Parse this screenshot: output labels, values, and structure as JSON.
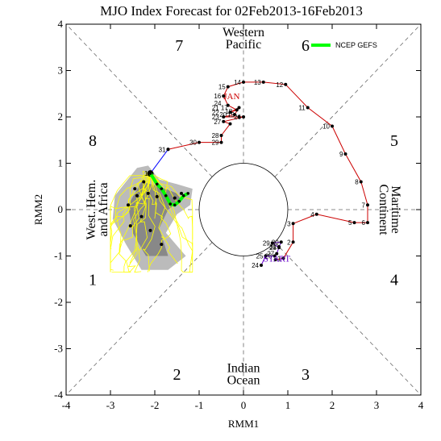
{
  "chart_data": {
    "type": "scatter",
    "title": "MJO Index Forecast for 02Feb2013-16Feb2013",
    "xlabel": "RMM1",
    "ylabel": "RMM2",
    "xlim": [
      -4,
      4
    ],
    "ylim": [
      -4,
      4
    ],
    "xticks": [
      "-4",
      "-3",
      "-2",
      "-1",
      "0",
      "1",
      "2",
      "3",
      "4"
    ],
    "yticks": [
      "-4",
      "-3",
      "-2",
      "-1",
      "0",
      "1",
      "2",
      "3",
      "4"
    ],
    "unit_circle_radius": 1,
    "phases": [
      {
        "label": "1",
        "x": -3.4,
        "y": -1.5
      },
      {
        "label": "2",
        "x": -1.5,
        "y": -3.55
      },
      {
        "label": "3",
        "x": 1.4,
        "y": -3.55
      },
      {
        "label": "4",
        "x": 3.4,
        "y": -1.5
      },
      {
        "label": "5",
        "x": 3.4,
        "y": 1.5
      },
      {
        "label": "6",
        "x": 1.4,
        "y": 3.55
      },
      {
        "label": "7",
        "x": -1.45,
        "y": 3.55
      },
      {
        "label": "8",
        "x": -3.4,
        "y": 1.5
      }
    ],
    "regions": [
      {
        "lines": [
          "Western",
          "Pacific"
        ],
        "x": 0,
        "y": 3.7,
        "rotate": 0
      },
      {
        "lines": [
          "Indian",
          "Ocean"
        ],
        "x": 0,
        "y": -3.55,
        "rotate": 0
      },
      {
        "lines": [
          "West. Hem.",
          "and Africa"
        ],
        "x": -3.3,
        "y": 0,
        "rotate": -90
      },
      {
        "lines": [
          "Maritime",
          "Continent"
        ],
        "x": 3.3,
        "y": 0,
        "rotate": 90
      }
    ],
    "legend": {
      "label": "NCEP GEFS",
      "color": "#00ff00",
      "position": "top-right"
    },
    "series": [
      {
        "kind": "observed-jan",
        "color": "#cc0000",
        "month_label": "JAN",
        "month_label_at": [
          -0.45,
          2.45
        ],
        "points": [
          {
            "label": "",
            "x": 0.72,
            "y": -1.08
          },
          {
            "label": "1",
            "x": 0.9,
            "y": -1.05
          },
          {
            "label": "2",
            "x": 1.12,
            "y": -0.7
          },
          {
            "label": "3",
            "x": 1.12,
            "y": -0.3
          },
          {
            "label": "4",
            "x": 1.65,
            "y": -0.1
          },
          {
            "label": "5",
            "x": 2.5,
            "y": -0.28
          },
          {
            "label": "6",
            "x": 2.8,
            "y": -0.28
          },
          {
            "label": "7",
            "x": 2.8,
            "y": 0.1
          },
          {
            "label": "8",
            "x": 2.65,
            "y": 0.6
          },
          {
            "label": "9",
            "x": 2.3,
            "y": 1.2
          },
          {
            "label": "10",
            "x": 2.0,
            "y": 1.8
          },
          {
            "label": "11",
            "x": 1.45,
            "y": 2.2
          },
          {
            "label": "12",
            "x": 0.95,
            "y": 2.7
          },
          {
            "label": "13",
            "x": 0.45,
            "y": 2.75
          },
          {
            "label": "14",
            "x": 0.0,
            "y": 2.75
          },
          {
            "label": "15",
            "x": -0.35,
            "y": 2.65
          },
          {
            "label": "16",
            "x": -0.45,
            "y": 2.45
          },
          {
            "label": "",
            "x": -0.35,
            "y": 2.25
          },
          {
            "label": "",
            "x": -0.15,
            "y": 2.15
          },
          {
            "label": "",
            "x": -0.3,
            "y": 2.1
          },
          {
            "label": "",
            "x": -0.1,
            "y": 2.2
          },
          {
            "label": "",
            "x": -0.2,
            "y": 2.05
          },
          {
            "label": "",
            "x": -0.45,
            "y": 2.0
          },
          {
            "label": "",
            "x": -0.1,
            "y": 2.0
          },
          {
            "label": "26",
            "x": 0.0,
            "y": 2.0
          },
          {
            "label": "27",
            "x": -0.45,
            "y": 1.9
          },
          {
            "label": "",
            "x": -0.3,
            "y": 1.85
          },
          {
            "label": "28",
            "x": -0.5,
            "y": 1.6
          },
          {
            "label": "29",
            "x": -0.5,
            "y": 1.45
          },
          {
            "label": "30",
            "x": -1.0,
            "y": 1.45
          },
          {
            "label": "31",
            "x": -1.7,
            "y": 1.3
          }
        ],
        "cluster_labels": [
          {
            "text": "24",
            "x": -0.5,
            "y": 2.3
          },
          {
            "text": "21",
            "x": -0.55,
            "y": 2.2
          },
          {
            "text": "22",
            "x": -0.55,
            "y": 2.1
          },
          {
            "text": "23",
            "x": -0.55,
            "y": 2.0
          },
          {
            "text": "17",
            "x": -0.35,
            "y": 2.2
          },
          {
            "text": "18",
            "x": -0.25,
            "y": 2.12
          },
          {
            "text": "19",
            "x": -0.2,
            "y": 2.05
          },
          {
            "text": "20",
            "x": -0.38,
            "y": 2.05
          }
        ]
      },
      {
        "kind": "observed-dec",
        "color": "#6600cc",
        "month_label": "START",
        "month_label_at": [
          0.45,
          -1.05
        ],
        "points": [
          {
            "label": "24",
            "x": 0.4,
            "y": -1.2
          },
          {
            "label": "25",
            "x": 0.5,
            "y": -1.0
          },
          {
            "label": "26",
            "x": 0.7,
            "y": -1.0
          },
          {
            "label": "27",
            "x": 0.75,
            "y": -0.95
          },
          {
            "label": "28",
            "x": 0.8,
            "y": -0.82
          },
          {
            "label": "29",
            "x": 0.65,
            "y": -0.72
          },
          {
            "label": "30",
            "x": 0.85,
            "y": -0.7
          },
          {
            "label": "31",
            "x": 0.8,
            "y": -0.8
          }
        ]
      },
      {
        "kind": "feb-connector",
        "color": "#0000ff",
        "points": [
          {
            "label": "",
            "x": -1.7,
            "y": 1.3
          },
          {
            "label": "1",
            "x": -2.1,
            "y": 0.78
          }
        ]
      },
      {
        "kind": "ensemble-mean",
        "color": "#00ff00",
        "points": [
          {
            "x": -2.1,
            "y": 0.78
          },
          {
            "x": -1.95,
            "y": 0.55
          },
          {
            "x": -1.85,
            "y": 0.45
          },
          {
            "x": -1.75,
            "y": 0.3
          },
          {
            "x": -1.65,
            "y": 0.12
          },
          {
            "x": -1.55,
            "y": 0.1
          },
          {
            "x": -1.45,
            "y": 0.18
          },
          {
            "x": -1.35,
            "y": 0.3
          },
          {
            "x": -1.25,
            "y": 0.35
          }
        ]
      },
      {
        "kind": "ensemble-track-dots",
        "color": "#000000",
        "points": [
          {
            "x": -2.25,
            "y": 0.6
          },
          {
            "x": -2.45,
            "y": 0.45
          },
          {
            "x": -2.15,
            "y": 0.35
          },
          {
            "x": -2.4,
            "y": 0.3
          },
          {
            "x": -1.95,
            "y": 0.28
          },
          {
            "x": -1.55,
            "y": 0.25
          },
          {
            "x": -1.4,
            "y": 0.35
          },
          {
            "x": -2.6,
            "y": 0.1
          },
          {
            "x": -2.3,
            "y": -0.15
          },
          {
            "x": -2.1,
            "y": -0.45
          },
          {
            "x": -1.85,
            "y": -0.75
          },
          {
            "x": -2.55,
            "y": -0.35
          }
        ]
      }
    ],
    "ensemble_spread": {
      "outer_color": "#bbbbbb",
      "inner_color": "#888888",
      "outer": [
        [
          -2.4,
          0.9
        ],
        [
          -2.15,
          0.95
        ],
        [
          -1.9,
          0.65
        ],
        [
          -1.5,
          0.55
        ],
        [
          -1.15,
          0.45
        ],
        [
          -1.2,
          0.1
        ],
        [
          -1.5,
          -0.1
        ],
        [
          -1.75,
          -0.5
        ],
        [
          -1.3,
          -1.0
        ],
        [
          -1.7,
          -1.3
        ],
        [
          -2.3,
          -1.3
        ],
        [
          -2.65,
          -0.75
        ],
        [
          -2.95,
          -0.2
        ],
        [
          -2.9,
          0.3
        ]
      ],
      "inner": [
        [
          -2.3,
          0.6
        ],
        [
          -1.9,
          0.5
        ],
        [
          -1.5,
          0.35
        ],
        [
          -1.4,
          0.2
        ],
        [
          -1.7,
          0.0
        ],
        [
          -1.9,
          -0.4
        ],
        [
          -1.7,
          -1.0
        ],
        [
          -2.2,
          -1.0
        ],
        [
          -2.5,
          -0.5
        ],
        [
          -2.6,
          0.1
        ]
      ]
    },
    "ensemble_tracks_color": "#ffff00"
  }
}
